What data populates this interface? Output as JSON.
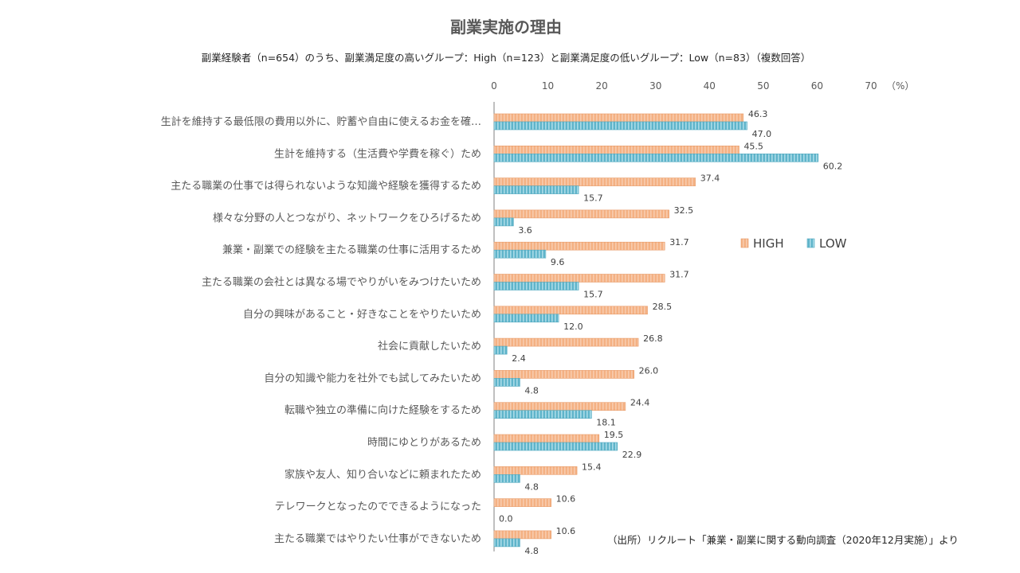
{
  "source_note": "（出所）リクルート「兼業・副業に関する動向調査（2020年12月実施）」より",
  "colors": {
    "high": "#F4B183",
    "low": "#7FC7D9",
    "axis": "#808080"
  },
  "chart_data": {
    "type": "bar",
    "orientation": "horizontal",
    "title": "副業実施の理由",
    "subtitle": "副業経験者（n=654）のうち、副業満足度の高いグループ：High（n=123）と副業満足度の低いグループ：Low（n=83）（複数回答）",
    "unit_label": "（%）",
    "xlim": [
      0,
      70
    ],
    "ticks": [
      0,
      10,
      20,
      30,
      40,
      50,
      60,
      70
    ],
    "legend_position": "right",
    "categories": [
      "生計を維持する最低限の費用以外に、貯蓄や自由に使えるお金を確…",
      "生計を維持する（生活費や学費を稼ぐ）ため",
      "主たる職業の仕事では得られないような知識や経験を獲得するため",
      "様々な分野の人とつながり、ネットワークをひろげるため",
      "兼業・副業での経験を主たる職業の仕事に活用するため",
      "主たる職業の会社とは異なる場でやりがいをみつけたいため",
      "自分の興味があること・好きなことをやりたいため",
      "社会に貢献したいため",
      "自分の知識や能力を社外でも試してみたいため",
      "転職や独立の準備に向けた経験をするため",
      "時間にゆとりがあるため",
      "家族や友人、知り合いなどに頼まれたため",
      "テレワークとなったのでできるようになった",
      "主たる職業ではやりたい仕事ができないため"
    ],
    "series": [
      {
        "name": "HIGH",
        "values": [
          46.3,
          45.5,
          37.4,
          32.5,
          31.7,
          31.7,
          28.5,
          26.8,
          26.0,
          24.4,
          19.5,
          15.4,
          10.6,
          10.6
        ]
      },
      {
        "name": "LOW",
        "values": [
          47.0,
          60.2,
          15.7,
          3.6,
          9.6,
          15.7,
          12.0,
          2.4,
          4.8,
          18.1,
          22.9,
          4.8,
          0.0,
          4.8
        ]
      }
    ]
  }
}
